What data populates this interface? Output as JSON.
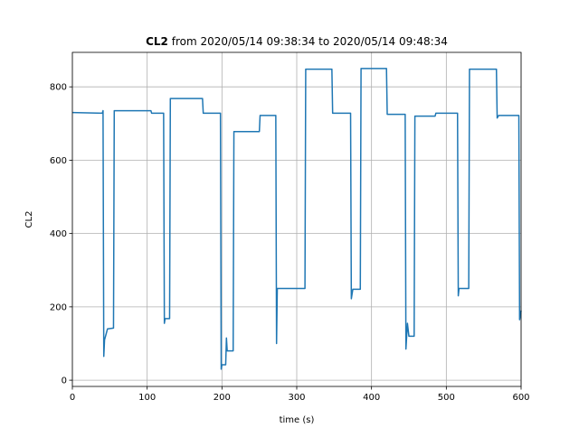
{
  "chart_data": {
    "type": "line",
    "title": [
      "CL2",
      "from 2020/05/14 09:38:34 to 2020/05/14 09:48:34"
    ],
    "xlabel": "time (s)",
    "ylabel": "CL2",
    "x": [
      0,
      40,
      41,
      42,
      43,
      47,
      55,
      56,
      105,
      106,
      122,
      123,
      124,
      130,
      131,
      174,
      175,
      198,
      199,
      200,
      205,
      206,
      207,
      215,
      216,
      250,
      251,
      272,
      273,
      274,
      311,
      312,
      347,
      348,
      372,
      373,
      375,
      385,
      386,
      420,
      421,
      445,
      446,
      448,
      450,
      457,
      458,
      485,
      486,
      515,
      516,
      517,
      530,
      531,
      567,
      568,
      570,
      597,
      598,
      600
    ],
    "series": [
      {
        "name": "CL2",
        "color": "#1f77b4",
        "values": [
          730,
          728,
          735,
          65,
          110,
          140,
          142,
          735,
          735,
          728,
          728,
          155,
          168,
          168,
          768,
          768,
          728,
          728,
          30,
          42,
          42,
          115,
          80,
          80,
          678,
          678,
          722,
          722,
          100,
          250,
          250,
          848,
          848,
          728,
          728,
          222,
          248,
          248,
          850,
          850,
          725,
          725,
          85,
          155,
          120,
          120,
          720,
          720,
          728,
          728,
          230,
          250,
          250,
          848,
          848,
          715,
          722,
          722,
          165,
          190
        ]
      }
    ],
    "xlim": [
      0,
      600
    ],
    "xticks": [
      0,
      100,
      200,
      300,
      400,
      500,
      600
    ],
    "ylim": [
      -17,
      894
    ],
    "yticks": [
      0,
      200,
      400,
      600,
      800
    ],
    "grid": true
  }
}
